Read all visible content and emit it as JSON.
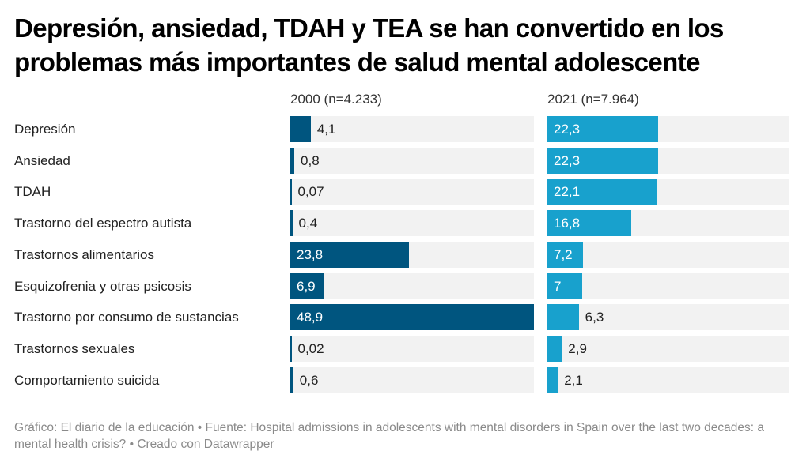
{
  "title": "Depresión, ansiedad, TDAH y TEA se han convertido en los problemas más importantes de salud mental adolescente",
  "footer": "Gráfico: El diario de la educación • Fuente: Hospital admissions in adolescents with mental disorders in Spain over the last two decades: a mental health crisis? • Creado con Datawrapper",
  "colors": {
    "series_2000": "#00557f",
    "series_2021": "#18a1cd",
    "track": "#f2f2f2"
  },
  "chart_data": {
    "type": "bar",
    "orientation": "horizontal",
    "title": "Depresión, ansiedad, TDAH y TEA se han convertido en los problemas más importantes de salud mental adolescente",
    "categories": [
      "Depresión",
      "Ansiedad",
      "TDAH",
      "Trastorno del espectro autista",
      "Trastornos alimentarios",
      "Esquizofrenia y otras psicosis",
      "Trastorno por consumo de sustancias",
      "Trastornos sexuales",
      "Comportamiento suicida"
    ],
    "xlim": [
      0,
      48.9
    ],
    "grid": false,
    "series": [
      {
        "name": "2000 (n=4.233)",
        "values": [
          4.1,
          0.8,
          0.07,
          0.4,
          23.8,
          6.9,
          48.9,
          0.02,
          0.6
        ],
        "labels": [
          "4,1",
          "0,8",
          "0,07",
          "0,4",
          "23,8",
          "6,9",
          "48,9",
          "0,02",
          "0,6"
        ]
      },
      {
        "name": "2021 (n=7.964)",
        "values": [
          22.3,
          22.3,
          22.1,
          16.8,
          7.2,
          7,
          6.3,
          2.9,
          2.1
        ],
        "labels": [
          "22,3",
          "22,3",
          "22,1",
          "16,8",
          "7,2",
          "7",
          "6,3",
          "2,9",
          "2,1"
        ]
      }
    ]
  }
}
